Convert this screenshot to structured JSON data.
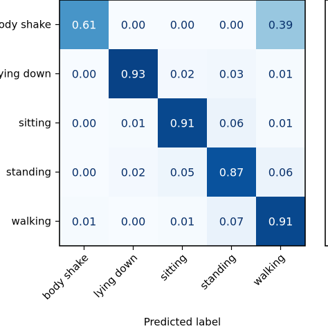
{
  "chart_data": {
    "type": "heatmap",
    "title": "",
    "xlabel": "Predicted label",
    "ylabel": "",
    "x_categories": [
      "body shake",
      "lying down",
      "sitting",
      "standing",
      "walking"
    ],
    "y_categories": [
      "body shake",
      "lying down",
      "sitting",
      "standing",
      "walking"
    ],
    "values": [
      [
        0.61,
        0.0,
        0.0,
        0.0,
        0.39
      ],
      [
        0.0,
        0.93,
        0.02,
        0.03,
        0.01
      ],
      [
        0.0,
        0.01,
        0.91,
        0.06,
        0.01
      ],
      [
        0.0,
        0.02,
        0.05,
        0.87,
        0.06
      ],
      [
        0.01,
        0.0,
        0.01,
        0.07,
        0.91
      ]
    ],
    "value_format": "0.00",
    "colormap": "Blues",
    "vmin": 0.0,
    "vmax": 1.0,
    "colorbar": true,
    "colors": {
      "low": "#f7fbff",
      "high": "#08306b",
      "text_dark": "#08306b",
      "text_light": "#ffffff"
    }
  }
}
